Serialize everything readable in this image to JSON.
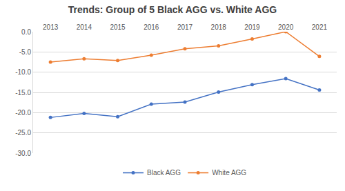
{
  "chart_data": {
    "type": "line",
    "title": "Trends: Group of 5 Black AGG vs. White AGG",
    "categories": [
      "2013",
      "2014",
      "2015",
      "2016",
      "2017",
      "2018",
      "2019",
      "2020",
      "2021"
    ],
    "series": [
      {
        "name": "Black AGG",
        "color": "#4472c4",
        "marker": "circle",
        "values": [
          -21.2,
          -20.2,
          -21.0,
          -17.9,
          -17.4,
          -14.9,
          -13.1,
          -11.6,
          -14.4
        ]
      },
      {
        "name": "White AGG",
        "color": "#ed7d31",
        "marker": "circle",
        "values": [
          -7.5,
          -6.7,
          -7.1,
          -5.8,
          -4.2,
          -3.5,
          -1.8,
          0.0,
          -6.1
        ]
      }
    ],
    "ylim": [
      -30,
      0
    ],
    "yticks": [
      {
        "value": 0,
        "label": "0.0"
      },
      {
        "value": -5,
        "label": "-5.0"
      },
      {
        "value": -10,
        "label": "-10.0"
      },
      {
        "value": -15,
        "label": "-15.0"
      },
      {
        "value": -20,
        "label": "-20.0"
      },
      {
        "value": -25,
        "label": "-25.0"
      },
      {
        "value": -30,
        "label": "-30.0"
      }
    ],
    "grid": true,
    "legend": "bottom"
  }
}
